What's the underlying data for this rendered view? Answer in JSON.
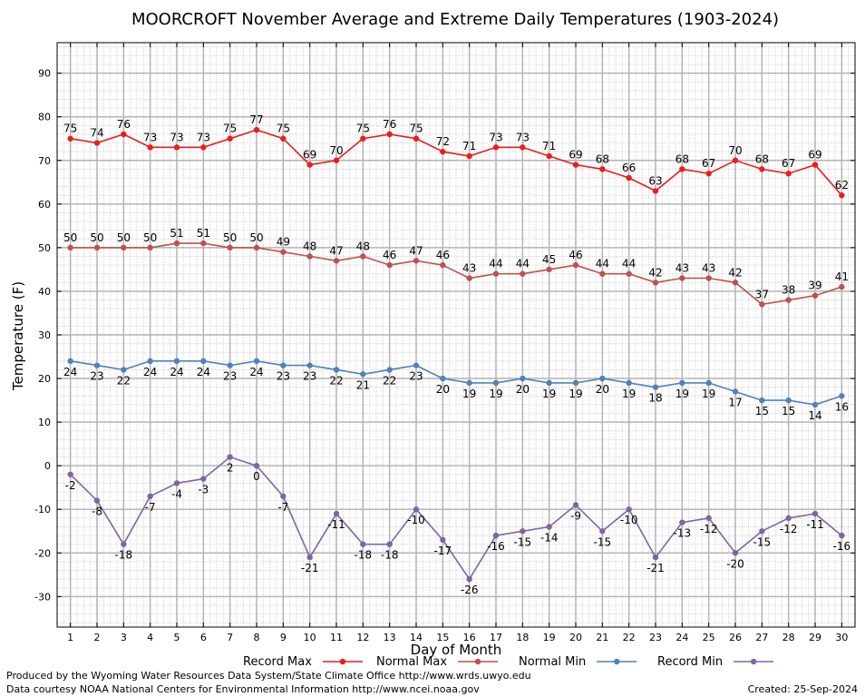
{
  "chart_data": {
    "type": "line",
    "title": "MOORCROFT November Average and Extreme Daily Temperatures (1903-2024)",
    "xlabel": "Day of Month",
    "ylabel": "Temperature (F)",
    "x": [
      1,
      2,
      3,
      4,
      5,
      6,
      7,
      8,
      9,
      10,
      11,
      12,
      13,
      14,
      15,
      16,
      17,
      18,
      19,
      20,
      21,
      22,
      23,
      24,
      25,
      26,
      27,
      28,
      29,
      30
    ],
    "xlim": [
      0.5,
      30.5
    ],
    "ylim": [
      -37,
      97
    ],
    "yticks": [
      -30,
      -20,
      -10,
      0,
      10,
      20,
      30,
      40,
      50,
      60,
      70,
      80,
      90
    ],
    "grid": true,
    "legend_position": "bottom",
    "series": [
      {
        "name": "Record Max",
        "color": "#ee1c1c",
        "values": [
          75,
          74,
          76,
          73,
          73,
          73,
          75,
          77,
          75,
          69,
          70,
          75,
          76,
          75,
          72,
          71,
          73,
          73,
          71,
          69,
          68,
          66,
          63,
          68,
          67,
          70,
          68,
          67,
          69,
          62
        ]
      },
      {
        "name": "Normal Max",
        "color": "#c0504d",
        "values": [
          50,
          50,
          50,
          50,
          51,
          51,
          50,
          50,
          49,
          48,
          47,
          48,
          46,
          47,
          46,
          43,
          44,
          44,
          45,
          46,
          44,
          44,
          42,
          43,
          43,
          42,
          37,
          38,
          39,
          41
        ]
      },
      {
        "name": "Normal Min",
        "color": "#4f81bd",
        "values": [
          24,
          23,
          22,
          24,
          24,
          24,
          23,
          24,
          23,
          23,
          22,
          21,
          22,
          23,
          20,
          19,
          19,
          20,
          19,
          19,
          20,
          19,
          18,
          19,
          19,
          17,
          15,
          15,
          14,
          16
        ]
      },
      {
        "name": "Record Min",
        "color": "#8064a2",
        "values": [
          -2,
          -8,
          -18,
          -7,
          -4,
          -3,
          2,
          0,
          -7,
          -21,
          -11,
          -18,
          -18,
          -10,
          -17,
          -26,
          -16,
          -15,
          -14,
          -9,
          -15,
          -10,
          -21,
          -13,
          -12,
          -20,
          -15,
          -12,
          -11,
          -16
        ]
      }
    ]
  },
  "footer": {
    "line1": "Produced by the Wyoming Water Resources Data System/State Climate Office http://www.wrds.uwyo.edu",
    "line2": "Data courtesy NOAA National Centers for Environmental Information http://www.ncei.noaa.gov",
    "created": "Created:  25-Sep-2024"
  }
}
